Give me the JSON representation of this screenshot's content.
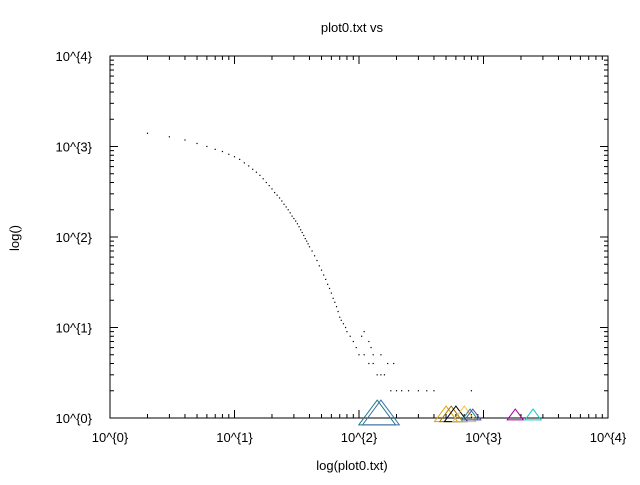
{
  "chart_data": {
    "type": "scatter",
    "title": "plot0.txt vs",
    "xlabel": "log(plot0.txt)",
    "ylabel": "log()",
    "xscale": "log",
    "yscale": "log",
    "xlim": [
      1,
      10000
    ],
    "ylim": [
      1,
      10000
    ],
    "x_ticks": [
      1,
      10,
      100,
      1000,
      10000
    ],
    "y_ticks": [
      1,
      10,
      100,
      1000,
      10000
    ],
    "x_tick_labels": [
      "10^{0}",
      "10^{1}",
      "10^{2}",
      "10^{3}",
      "10^{4}"
    ],
    "y_tick_labels": [
      "10^{0}",
      "10^{1}",
      "10^{2}",
      "10^{3}",
      "10^{4}"
    ],
    "grid": false,
    "series": [
      {
        "marker": "dot",
        "color": "#000000",
        "points": [
          [
            2,
            1400
          ],
          [
            3,
            1280
          ],
          [
            4,
            1180
          ],
          [
            5,
            1080
          ],
          [
            6,
            1000
          ],
          [
            7,
            930
          ],
          [
            8,
            880
          ],
          [
            9,
            820
          ],
          [
            10,
            770
          ],
          [
            11,
            720
          ],
          [
            12,
            660
          ],
          [
            13,
            610
          ],
          [
            14,
            560
          ],
          [
            15,
            520
          ],
          [
            16,
            480
          ],
          [
            17,
            440
          ],
          [
            18,
            400
          ],
          [
            19,
            370
          ],
          [
            20,
            340
          ],
          [
            21,
            310
          ],
          [
            22,
            290
          ],
          [
            23,
            270
          ],
          [
            24,
            250
          ],
          [
            25,
            230
          ],
          [
            26,
            215
          ],
          [
            27,
            200
          ],
          [
            28,
            185
          ],
          [
            29,
            170
          ],
          [
            30,
            160
          ],
          [
            31,
            150
          ],
          [
            32,
            140
          ],
          [
            33,
            130
          ],
          [
            34,
            120
          ],
          [
            35,
            112
          ],
          [
            36,
            104
          ],
          [
            37,
            96
          ],
          [
            38,
            90
          ],
          [
            39,
            84
          ],
          [
            40,
            78
          ],
          [
            42,
            70
          ],
          [
            44,
            62
          ],
          [
            46,
            55
          ],
          [
            48,
            48
          ],
          [
            50,
            43
          ],
          [
            52,
            38
          ],
          [
            54,
            34
          ],
          [
            56,
            30
          ],
          [
            58,
            27
          ],
          [
            60,
            24
          ],
          [
            62,
            21
          ],
          [
            64,
            19
          ],
          [
            66,
            17
          ],
          [
            68,
            15
          ],
          [
            70,
            13
          ],
          [
            72,
            12
          ],
          [
            75,
            11
          ],
          [
            78,
            10
          ],
          [
            80,
            9
          ],
          [
            85,
            8
          ],
          [
            90,
            7
          ],
          [
            95,
            6
          ],
          [
            100,
            5
          ],
          [
            110,
            5
          ],
          [
            120,
            4
          ],
          [
            130,
            4
          ],
          [
            140,
            3
          ],
          [
            150,
            3
          ],
          [
            160,
            3
          ],
          [
            180,
            2
          ],
          [
            200,
            2
          ],
          [
            220,
            2
          ],
          [
            250,
            2
          ],
          [
            300,
            2
          ],
          [
            350,
            2
          ],
          [
            400,
            2
          ],
          [
            800,
            2
          ],
          [
            110,
            9
          ],
          [
            105,
            8
          ],
          [
            120,
            7
          ],
          [
            125,
            6
          ],
          [
            130,
            5
          ],
          [
            150,
            5
          ],
          [
            170,
            4
          ],
          [
            190,
            4
          ]
        ]
      },
      {
        "marker": "triangle",
        "color": "#1b7a86",
        "points": [
          [
            140,
            1.05
          ]
        ],
        "size": "large"
      },
      {
        "marker": "triangle",
        "color": "#3c6ea8",
        "points": [
          [
            150,
            1.05
          ]
        ],
        "size": "large"
      },
      {
        "marker": "triangle",
        "color": "#e8a000",
        "points": [
          [
            500,
            1.05
          ]
        ],
        "size": "medium"
      },
      {
        "marker": "triangle",
        "color": "#9c7a00",
        "points": [
          [
            550,
            1.05
          ]
        ],
        "size": "medium"
      },
      {
        "marker": "triangle",
        "color": "#000000",
        "points": [
          [
            600,
            1.05
          ]
        ],
        "size": "medium"
      },
      {
        "marker": "triangle",
        "color": "#f0c040",
        "points": [
          [
            700,
            1.05
          ]
        ],
        "size": "medium"
      },
      {
        "marker": "triangle",
        "color": "#1f8a8a",
        "points": [
          [
            780,
            1.05
          ]
        ],
        "size": "small"
      },
      {
        "marker": "triangle",
        "color": "#5b4fb0",
        "points": [
          [
            820,
            1.05
          ]
        ],
        "size": "small"
      },
      {
        "marker": "triangle",
        "color": "#a000a0",
        "points": [
          [
            1800,
            1.05
          ]
        ],
        "size": "small"
      },
      {
        "marker": "triangle",
        "color": "#10c8c8",
        "points": [
          [
            2500,
            1.05
          ]
        ],
        "size": "small"
      }
    ]
  }
}
